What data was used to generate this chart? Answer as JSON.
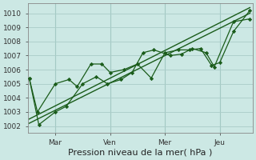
{
  "bg_color": "#cce8e4",
  "grid_color": "#aaccc8",
  "line_color": "#1a5c1a",
  "marker_color": "#1a5c1a",
  "xlabel": "Pression niveau de la mer( hPa )",
  "xlabel_fontsize": 8,
  "ylim": [
    1001.5,
    1010.7
  ],
  "yticks": [
    1002,
    1003,
    1004,
    1005,
    1006,
    1007,
    1008,
    1009,
    1010
  ],
  "xlim": [
    0,
    8.2
  ],
  "xtick_positions": [
    1,
    3,
    5,
    7
  ],
  "xtick_labels": [
    "Mar",
    "Ven",
    "Mer",
    "Jeu"
  ],
  "series1_x": [
    0.05,
    0.35,
    1.0,
    1.5,
    1.8,
    2.3,
    2.7,
    3.0,
    3.5,
    4.0,
    4.5,
    5.0,
    5.5,
    5.9,
    6.3,
    6.7,
    7.0,
    7.5,
    8.1
  ],
  "series1_y": [
    1005.4,
    1003.0,
    1005.0,
    1005.3,
    1004.8,
    1006.4,
    1006.4,
    1005.8,
    1006.0,
    1006.4,
    1005.4,
    1007.2,
    1007.4,
    1007.4,
    1007.5,
    1006.3,
    1006.5,
    1008.7,
    1010.2
  ],
  "series2_x": [
    0.05,
    0.4,
    1.0,
    1.4,
    2.0,
    2.5,
    2.9,
    3.4,
    3.8,
    4.2,
    4.6,
    5.2,
    5.6,
    6.0,
    6.5,
    6.8,
    7.5,
    8.1
  ],
  "series2_y": [
    1005.4,
    1002.1,
    1003.0,
    1003.4,
    1005.0,
    1005.5,
    1005.0,
    1005.3,
    1005.8,
    1007.2,
    1007.4,
    1007.0,
    1007.1,
    1007.5,
    1007.2,
    1006.2,
    1009.4,
    1009.6
  ],
  "trend1_x": [
    0.05,
    8.1
  ],
  "trend1_y": [
    1002.2,
    1010.0
  ],
  "trend2_x": [
    0.05,
    8.1
  ],
  "trend2_y": [
    1002.5,
    1010.4
  ],
  "vlines": [
    1,
    3,
    5,
    7
  ]
}
